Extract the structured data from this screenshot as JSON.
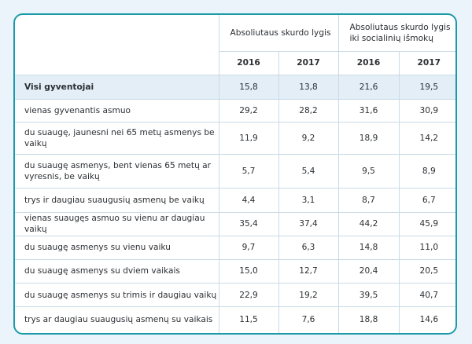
{
  "header": {
    "groups": [
      {
        "label": "Absoliutaus skurdo lygis"
      },
      {
        "label": "Absoliutaus skurdo lygis iki socialinių išmokų"
      }
    ],
    "years": [
      "2016",
      "2017",
      "2016",
      "2017"
    ]
  },
  "rows": [
    {
      "label": "Visi gyventojai",
      "values": [
        "15,8",
        "13,8",
        "21,6",
        "19,5"
      ],
      "highlight": true
    },
    {
      "label": "vienas gyvenantis asmuo",
      "values": [
        "29,2",
        "28,2",
        "31,6",
        "30,9"
      ]
    },
    {
      "label": "du suaugę, jaunesni nei 65 metų asmenys be vaikų",
      "values": [
        "11,9",
        "9,2",
        "18,9",
        "14,2"
      ]
    },
    {
      "label": "du suaugę asmenys, bent vienas 65 metų ar vyresnis, be vaikų",
      "values": [
        "5,7",
        "5,4",
        "9,5",
        "8,9"
      ]
    },
    {
      "label": "trys ir daugiau suaugusių asmenų be vaikų",
      "values": [
        "4,4",
        "3,1",
        "8,7",
        "6,7"
      ]
    },
    {
      "label": "vienas suaugęs asmuo su vienu ar daugiau vaikų",
      "values": [
        "35,4",
        "37,4",
        "44,2",
        "45,9"
      ]
    },
    {
      "label": "du suaugę asmenys su vienu vaiku",
      "values": [
        "9,7",
        "6,3",
        "14,8",
        "11,0"
      ]
    },
    {
      "label": "du suaugę asmenys su dviem vaikais",
      "values": [
        "15,0",
        "12,7",
        "20,4",
        "20,5"
      ]
    },
    {
      "label": "du suaugę asmenys su trimis ir daugiau vaikų",
      "values": [
        "22,9",
        "19,2",
        "39,5",
        "40,7"
      ]
    },
    {
      "label": "trys ar daugiau suaugusių asmenų su vaikais",
      "values": [
        "11,5",
        "7,6",
        "18,8",
        "14,6"
      ]
    }
  ]
}
